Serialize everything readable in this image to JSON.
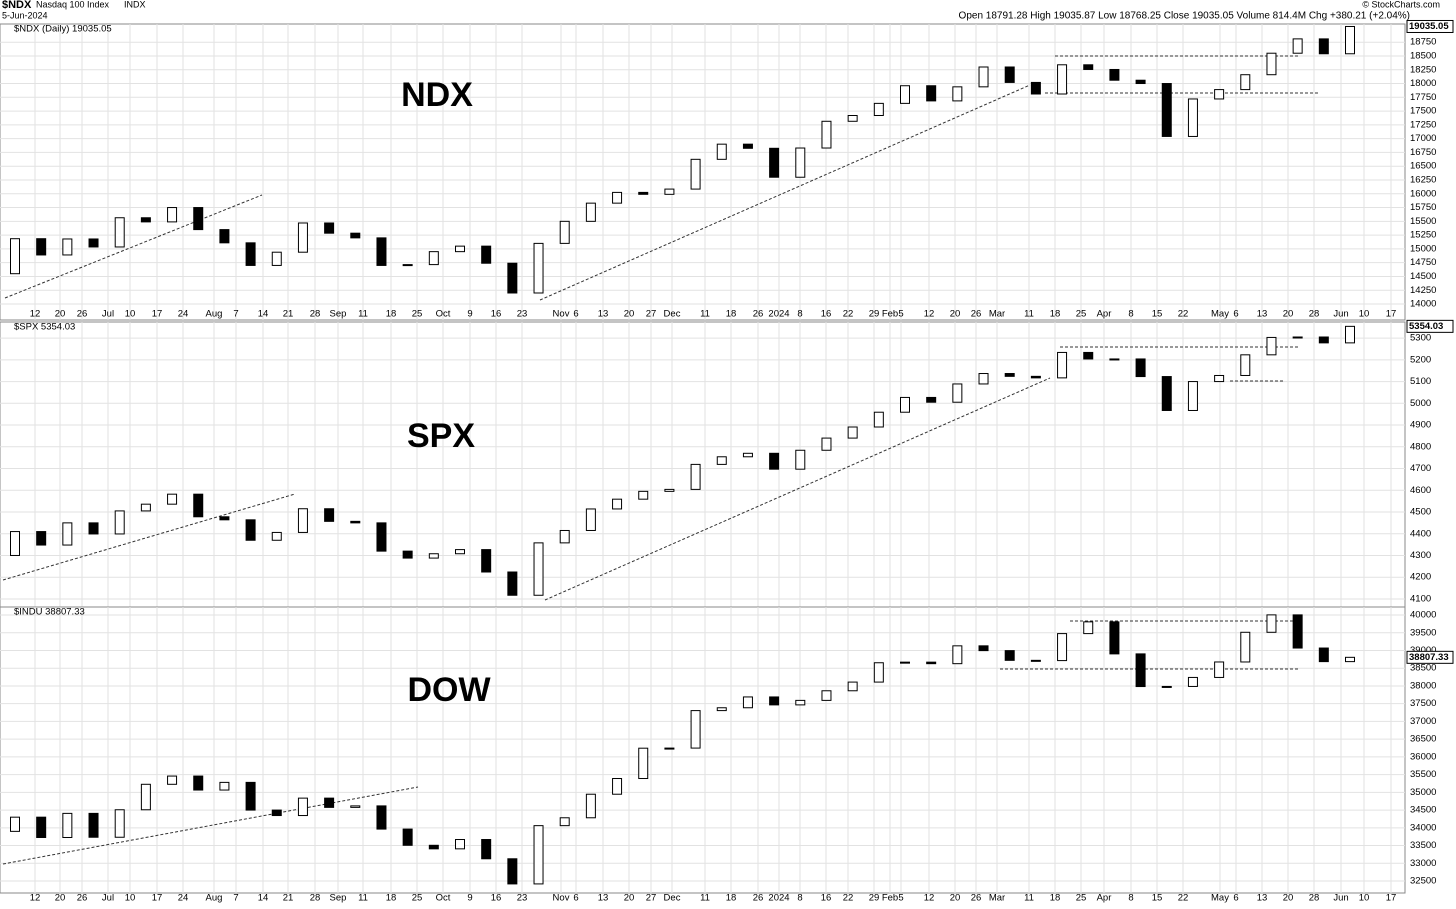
{
  "header": {
    "symbol": "$NDX",
    "name": "Nasdaq 100 Index",
    "exchange": "INDX",
    "date": "5-Jun-2024",
    "stats": "Open 18791.28  High 19035.87  Low 18768.25  Close 19035.05  Volume 814.4M  Chg +380.21 (+2.04%)",
    "credit": "© StockCharts.com"
  },
  "chart_data": [
    {
      "type": "candlestick",
      "symbol_label": "$NDX (Daily) 19035.05",
      "annotation": "NDX",
      "last_label": "19035.05",
      "up_color": "#ffffff",
      "down_color": "#000000",
      "ylim": [
        13710,
        19080
      ],
      "yticks": [
        14000,
        14250,
        14500,
        14750,
        15000,
        15250,
        15500,
        15750,
        16000,
        16250,
        16500,
        16750,
        17000,
        17250,
        17500,
        17750,
        18000,
        18250,
        18500,
        18750
      ],
      "x_labels": [
        "12",
        "20",
        "26",
        "Jul",
        "10",
        "17",
        "24",
        "Aug",
        "7",
        "14",
        "21",
        "28",
        "Sep",
        "11",
        "18",
        "25",
        "Oct",
        "9",
        "16",
        "23",
        "Nov",
        "6",
        "13",
        "20",
        "27",
        "Dec",
        "11",
        "18",
        "26",
        "2024",
        "8",
        "16",
        "22",
        "29",
        "Feb",
        "5",
        "12",
        "20",
        "26",
        "Mar",
        "11",
        "18",
        "25",
        "Apr",
        "8",
        "15",
        "22",
        "May",
        "6",
        "13",
        "20",
        "28",
        "Jun",
        "10",
        "17"
      ],
      "open": [
        14550,
        15185,
        14890,
        15180,
        15035,
        15565,
        15490,
        15750,
        15350,
        15110,
        14700,
        14940,
        15470,
        15285,
        15200,
        14700,
        14715,
        14950,
        15050,
        14740,
        14200,
        15100,
        15500,
        15830,
        16025,
        15990,
        16085,
        16625,
        16900,
        16825,
        16300,
        16830,
        17315,
        17420,
        17640,
        17960,
        17685,
        17940,
        18300,
        18020,
        17810,
        18340,
        18255,
        18060,
        18000,
        17040,
        17720,
        17890,
        18160,
        18550,
        18810,
        18540
      ],
      "close": [
        15185,
        14890,
        15180,
        15035,
        15565,
        15490,
        15750,
        15350,
        15110,
        14700,
        14940,
        15470,
        15285,
        15200,
        14700,
        14715,
        14950,
        15050,
        14740,
        14200,
        15100,
        15500,
        15830,
        16025,
        15990,
        16085,
        16625,
        16900,
        16825,
        16300,
        16830,
        17315,
        17420,
        17640,
        17960,
        17685,
        17940,
        18300,
        18020,
        17810,
        18340,
        18255,
        18060,
        18000,
        17040,
        17720,
        17890,
        18160,
        18550,
        18810,
        18540,
        19035
      ]
    },
    {
      "type": "candlestick",
      "symbol_label": "$SPX 5354.03",
      "annotation": "SPX",
      "last_label": "5354.03",
      "up_color": "#ffffff",
      "down_color": "#000000",
      "ylim": [
        4063,
        5374
      ],
      "yticks": [
        4100,
        4200,
        4300,
        4400,
        4500,
        4600,
        4700,
        4800,
        4900,
        5000,
        5100,
        5200,
        5300
      ],
      "open": [
        4300,
        4410,
        4348,
        4450,
        4399,
        4505,
        4536,
        4582,
        4478,
        4464,
        4370,
        4406,
        4515,
        4457,
        4450,
        4320,
        4288,
        4308,
        4327,
        4224,
        4117,
        4358,
        4415,
        4514,
        4559,
        4595,
        4604,
        4719,
        4754,
        4770,
        4697,
        4784,
        4840,
        4891,
        4959,
        5027,
        5005,
        5089,
        5137,
        5124,
        5117,
        5234,
        5204,
        5204,
        5123,
        4967,
        5100,
        5128,
        5223,
        5303,
        5305,
        5278
      ],
      "close": [
        4410,
        4348,
        4450,
        4399,
        4505,
        4536,
        4582,
        4478,
        4464,
        4370,
        4406,
        4515,
        4457,
        4450,
        4320,
        4288,
        4308,
        4327,
        4224,
        4117,
        4358,
        4415,
        4514,
        4559,
        4595,
        4604,
        4719,
        4754,
        4770,
        4697,
        4784,
        4840,
        4891,
        4959,
        5027,
        5005,
        5089,
        5137,
        5124,
        5117,
        5234,
        5204,
        5204,
        5123,
        4967,
        5100,
        5128,
        5223,
        5303,
        5305,
        5278,
        5354
      ]
    },
    {
      "type": "candlestick",
      "symbol_label": "$INDU 38807.33",
      "annotation": "DOW",
      "last_label": "38807.33",
      "up_color": "#ffffff",
      "down_color": "#000000",
      "ylim": [
        32162,
        40226
      ],
      "yticks": [
        32500,
        33000,
        33500,
        34000,
        34500,
        35000,
        35500,
        36000,
        36500,
        37000,
        37500,
        38000,
        38500,
        39000,
        39500,
        40000
      ],
      "x_labels": [
        "12",
        "20",
        "26",
        "Jul",
        "10",
        "17",
        "24",
        "Aug",
        "7",
        "14",
        "21",
        "28",
        "Sep",
        "11",
        "18",
        "25",
        "Oct",
        "9",
        "16",
        "23",
        "Nov",
        "6",
        "13",
        "20",
        "27",
        "Dec",
        "11",
        "18",
        "26",
        "2024",
        "8",
        "16",
        "22",
        "29",
        "Feb",
        "5",
        "12",
        "20",
        "26",
        "Mar",
        "11",
        "18",
        "25",
        "Apr",
        "8",
        "15",
        "22",
        "May",
        "6",
        "13",
        "20",
        "28",
        "Jun",
        "10",
        "17"
      ],
      "open": [
        33900,
        34300,
        33727,
        34407,
        33734,
        34509,
        35227,
        35459,
        35065,
        35281,
        34500,
        34346,
        34837,
        34576,
        34618,
        33964,
        33507,
        33407,
        33670,
        33127,
        32418,
        34061,
        34283,
        34947,
        35390,
        36245,
        36248,
        37305,
        37385,
        37690,
        37466,
        37593,
        37864,
        38109,
        38654,
        38671,
        38628,
        39131,
        38996,
        38722,
        38715,
        39476,
        39807,
        38904,
        37983,
        37986,
        38240,
        38676,
        39513,
        40004,
        39069,
        38686
      ],
      "close": [
        34300,
        33727,
        34407,
        33734,
        34509,
        35227,
        35459,
        35065,
        35281,
        34500,
        34346,
        34837,
        34576,
        34618,
        33964,
        33507,
        33407,
        33670,
        33127,
        32418,
        34061,
        34283,
        34947,
        35390,
        36245,
        36248,
        37305,
        37385,
        37690,
        37466,
        37593,
        37864,
        38109,
        38654,
        38671,
        38628,
        39131,
        38996,
        38722,
        38715,
        39476,
        39807,
        38904,
        37983,
        37986,
        38240,
        38676,
        39513,
        40004,
        39069,
        38686,
        38807
      ]
    }
  ]
}
